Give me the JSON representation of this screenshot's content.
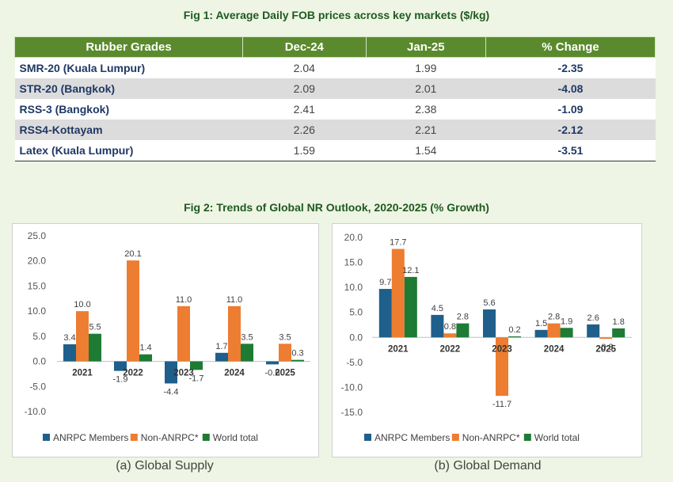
{
  "fig1": {
    "title": "Fig 1: Average Daily FOB prices across key markets ($/kg)",
    "headers": [
      "Rubber Grades",
      "Dec-24",
      "Jan-25",
      "% Change"
    ],
    "rows": [
      {
        "grade": "SMR-20 (Kuala Lumpur)",
        "dec": "2.04",
        "jan": "1.99",
        "change": "-2.35"
      },
      {
        "grade": "STR-20 (Bangkok)",
        "dec": "2.09",
        "jan": "2.01",
        "change": "-4.08"
      },
      {
        "grade": "RSS-3 (Bangkok)",
        "dec": "2.41",
        "jan": "2.38",
        "change": "-1.09"
      },
      {
        "grade": "RSS4-Kottayam",
        "dec": "2.26",
        "jan": "2.21",
        "change": "-2.12"
      },
      {
        "grade": "Latex (Kuala Lumpur)",
        "dec": "1.59",
        "jan": "1.54",
        "change": "-3.51"
      }
    ]
  },
  "fig2": {
    "title": "Fig 2: Trends of Global NR Outlook, 2020-2025 (% Growth)",
    "colors": {
      "anrpc": "#1f5f8b",
      "non_anrpc": "#ed7d31",
      "world": "#1e7b34"
    }
  },
  "chart_data": [
    {
      "type": "bar",
      "caption": "(a) Global Supply",
      "categories": [
        "2021",
        "2022",
        "2023",
        "2024",
        "2025"
      ],
      "series": [
        {
          "name": "ANRPC Members",
          "values": [
            3.4,
            -1.9,
            -4.4,
            1.7,
            -0.6
          ]
        },
        {
          "name": "Non-ANRPC*",
          "values": [
            10.0,
            20.1,
            11.0,
            11.0,
            3.5
          ]
        },
        {
          "name": "World total",
          "values": [
            5.5,
            1.4,
            -1.7,
            3.5,
            0.3
          ]
        }
      ],
      "labels": [
        [
          "3.4",
          "-1.9",
          "-4.4",
          "1.7",
          "-0.6"
        ],
        [
          "10.0",
          "20.1",
          "11.0",
          "11.0",
          "3.5"
        ],
        [
          "5.5",
          "1.4",
          "-1.7",
          "3.5",
          "0.3"
        ]
      ],
      "ylim": [
        -10,
        25
      ],
      "yticks": [
        "-10.0",
        "-5.0",
        "0.0",
        "5.0",
        "10.0",
        "15.0",
        "20.0",
        "25.0"
      ],
      "legend": "bottom",
      "grid": false
    },
    {
      "type": "bar",
      "caption": "(b) Global Demand",
      "categories": [
        "2021",
        "2022",
        "2023",
        "2024",
        "2025"
      ],
      "series": [
        {
          "name": "ANRPC Members",
          "values": [
            9.7,
            4.5,
            5.6,
            1.5,
            2.6
          ]
        },
        {
          "name": "Non-ANRPC*",
          "values": [
            17.7,
            0.8,
            -11.7,
            2.8,
            -0.3
          ]
        },
        {
          "name": "World total",
          "values": [
            12.1,
            2.8,
            0.2,
            1.9,
            1.8
          ]
        }
      ],
      "labels": [
        [
          "9.7",
          "4.5",
          "5.6",
          "1.5",
          "2.6"
        ],
        [
          "17.7",
          "0.8",
          "-11.7",
          "2.8",
          "-0.3"
        ],
        [
          "12.1",
          "2.8",
          "0.2",
          "1.9",
          "1.8"
        ]
      ],
      "ylim": [
        -15,
        20
      ],
      "yticks": [
        "-15.0",
        "-10.0",
        "-5.0",
        "0.0",
        "5.0",
        "10.0",
        "15.0",
        "20.0"
      ],
      "legend": "bottom",
      "grid": false
    }
  ]
}
